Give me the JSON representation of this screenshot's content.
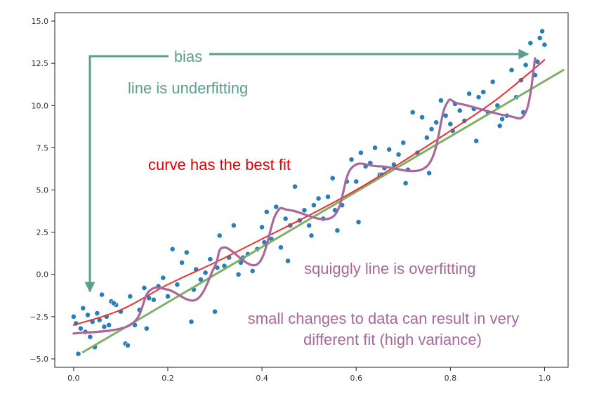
{
  "chart_data": {
    "type": "scatter",
    "title": "",
    "xlabel": "",
    "ylabel": "",
    "xlim": [
      -0.04,
      1.05
    ],
    "ylim": [
      -5.5,
      15.5
    ],
    "grid": false,
    "xticks": [
      0.0,
      0.2,
      0.4,
      0.6,
      0.8,
      1.0
    ],
    "xtick_labels": [
      "0.0",
      "0.2",
      "0.4",
      "0.6",
      "0.8",
      "1.0"
    ],
    "yticks": [
      -5.0,
      -2.5,
      0.0,
      2.5,
      5.0,
      7.5,
      10.0,
      12.5,
      15.0
    ],
    "ytick_labels": [
      "−5.0",
      "−2.5",
      "0.0",
      "2.5",
      "5.0",
      "7.5",
      "10.0",
      "12.5",
      "15.0"
    ],
    "points": {
      "color": "#1f77b4",
      "x": [
        0.0,
        0.01,
        0.02,
        0.03,
        0.04,
        0.05,
        0.06,
        0.07,
        0.08,
        0.09,
        0.1,
        0.11,
        0.12,
        0.13,
        0.14,
        0.15,
        0.16,
        0.17,
        0.18,
        0.19,
        0.2,
        0.21,
        0.22,
        0.23,
        0.24,
        0.25,
        0.26,
        0.27,
        0.28,
        0.29,
        0.3,
        0.31,
        0.32,
        0.33,
        0.34,
        0.35,
        0.36,
        0.37,
        0.38,
        0.39,
        0.4,
        0.41,
        0.42,
        0.43,
        0.44,
        0.45,
        0.46,
        0.47,
        0.48,
        0.49,
        0.5,
        0.51,
        0.52,
        0.53,
        0.54,
        0.55,
        0.56,
        0.57,
        0.58,
        0.59,
        0.6,
        0.61,
        0.62,
        0.63,
        0.64,
        0.65,
        0.66,
        0.67,
        0.68,
        0.69,
        0.7,
        0.71,
        0.72,
        0.73,
        0.74,
        0.75,
        0.76,
        0.77,
        0.78,
        0.79,
        0.8,
        0.81,
        0.82,
        0.83,
        0.84,
        0.85,
        0.86,
        0.87,
        0.88,
        0.89,
        0.9,
        0.91,
        0.92,
        0.93,
        0.94,
        0.95,
        0.96,
        0.97,
        0.98,
        0.99,
        1.0,
        0.005,
        0.015,
        0.025,
        0.035,
        0.045,
        0.055,
        0.065,
        0.075,
        0.085,
        0.115,
        0.155,
        0.255,
        0.305,
        0.355,
        0.405,
        0.455,
        0.505,
        0.555,
        0.605,
        0.655,
        0.705,
        0.755,
        0.805,
        0.855,
        0.905,
        0.955,
        0.985,
        0.995
      ],
      "y": [
        -2.5,
        -4.7,
        -2.0,
        -2.4,
        -2.8,
        -2.3,
        -1.2,
        -2.5,
        -1.6,
        -1.8,
        -2.2,
        -4.1,
        -1.3,
        -3.0,
        -2.1,
        -0.8,
        -1.4,
        -1.5,
        -0.7,
        -0.2,
        -1.3,
        1.5,
        -0.6,
        0.7,
        1.3,
        -2.8,
        0.3,
        -0.3,
        0.1,
        0.9,
        -2.2,
        2.3,
        0.5,
        1.0,
        2.9,
        0.0,
        1.0,
        1.2,
        0.2,
        1.5,
        2.8,
        3.7,
        2.1,
        4.0,
        1.6,
        3.3,
        2.9,
        5.2,
        3.2,
        3.8,
        2.9,
        4.1,
        4.5,
        3.3,
        4.6,
        5.7,
        2.6,
        4.1,
        5.5,
        6.8,
        5.5,
        7.2,
        6.4,
        6.6,
        7.5,
        5.9,
        6.3,
        7.4,
        6.5,
        7.1,
        7.8,
        6.2,
        9.6,
        7.2,
        9.3,
        8.1,
        8.6,
        9.0,
        10.3,
        9.4,
        8.9,
        10.1,
        9.7,
        9.1,
        10.7,
        9.8,
        10.5,
        10.8,
        9.6,
        11.4,
        10.0,
        9.2,
        9.4,
        12.1,
        10.5,
        11.5,
        12.4,
        13.7,
        11.8,
        14.0,
        13.6,
        -2.9,
        -3.2,
        -3.4,
        -3.7,
        -4.3,
        -2.7,
        -3.1,
        -3.0,
        -1.7,
        -4.2,
        -3.2,
        -0.9,
        0.4,
        0.7,
        1.9,
        0.8,
        2.3,
        3.8,
        3.1,
        5.9,
        5.4,
        6.0,
        8.5,
        7.9,
        8.8,
        9.6,
        12.6,
        14.4
      ],
      "note": "approximate positions of the scatter points"
    },
    "series": [
      {
        "kind": "linear-fit",
        "color": "#7fb069",
        "x": [
          0.02,
          1.04
        ],
        "y": [
          -4.6,
          12.1
        ]
      },
      {
        "kind": "smooth-fit",
        "color": "#e8312f",
        "x": [
          0.0,
          0.1,
          0.2,
          0.3,
          0.4,
          0.5,
          0.6,
          0.7,
          0.8,
          0.9,
          1.0
        ],
        "y": [
          -3.0,
          -2.1,
          -0.6,
          0.7,
          2.1,
          3.5,
          5.0,
          6.7,
          8.5,
          10.4,
          12.7
        ]
      },
      {
        "kind": "squiggle",
        "color": "#a8689e",
        "x": [
          0.0,
          0.12,
          0.16,
          0.2,
          0.26,
          0.3,
          0.32,
          0.39,
          0.43,
          0.46,
          0.55,
          0.59,
          0.65,
          0.75,
          0.79,
          0.82,
          0.92,
          0.96,
          0.98
        ],
        "y": [
          -3.5,
          -3.0,
          -1.0,
          -0.9,
          -1.5,
          0.5,
          1.6,
          0.6,
          3.6,
          3.8,
          3.4,
          6.3,
          6.4,
          6.4,
          10.0,
          10.1,
          9.4,
          9.6,
          12.8
        ]
      }
    ],
    "annotations": [
      {
        "text": "bias",
        "color": "#5a9e8c"
      },
      {
        "text": "line is underfitting",
        "color": "#5a9e8c"
      },
      {
        "text": "curve has the best fit",
        "color": "#e00000"
      },
      {
        "text": "squiggly line is overfitting",
        "color": "#a8689e"
      },
      {
        "text": "small changes to data can result in very",
        "color": "#a8689e"
      },
      {
        "text": "different fit (high variance)",
        "color": "#a8689e"
      }
    ]
  }
}
